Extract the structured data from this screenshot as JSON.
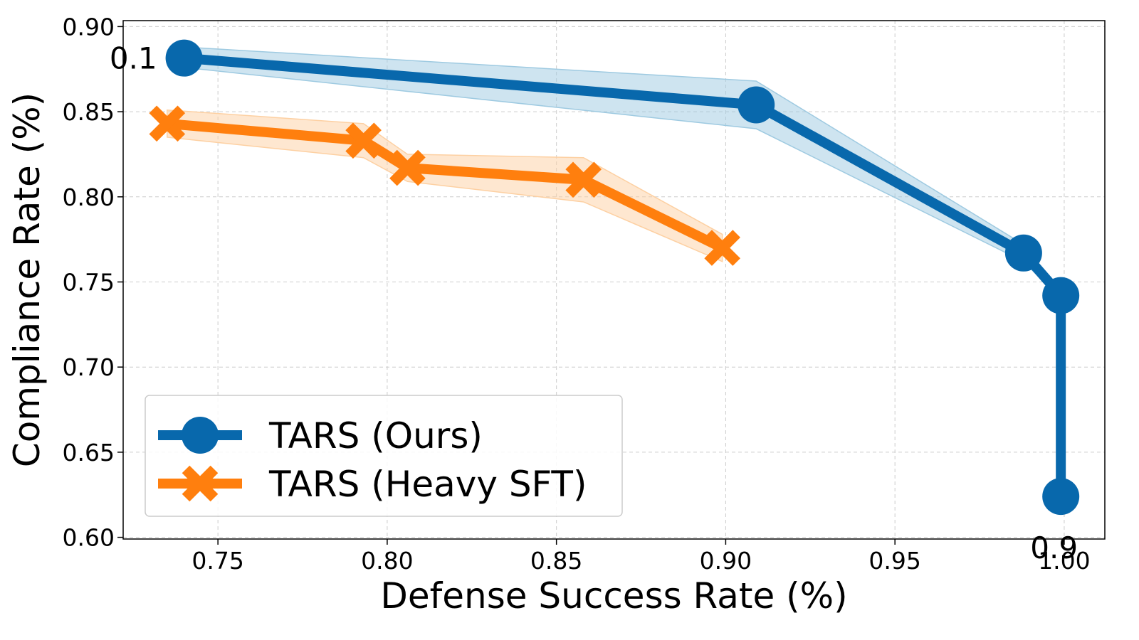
{
  "chart_data": {
    "type": "line",
    "title": "",
    "xlabel": "Defense Success Rate (%)",
    "ylabel": "Compliance Rate (%)",
    "xlim": [
      0.722,
      1.012
    ],
    "ylim": [
      0.599,
      0.9035
    ],
    "grid": true,
    "legend_position": "lower-left",
    "x_ticks": [
      0.75,
      0.8,
      0.85,
      0.9,
      0.95,
      1.0
    ],
    "x_tick_labels": [
      "0.75",
      "0.80",
      "0.85",
      "0.90",
      "0.95",
      "1.00"
    ],
    "y_ticks": [
      0.6,
      0.65,
      0.7,
      0.75,
      0.8,
      0.85,
      0.9
    ],
    "y_tick_labels": [
      "0.60",
      "0.65",
      "0.70",
      "0.75",
      "0.80",
      "0.85",
      "0.90"
    ],
    "series": [
      {
        "name": "TARS (Ours)",
        "color": "#0868ac",
        "band_color": "#9ecae1",
        "marker": "circle",
        "x": [
          0.74,
          0.909,
          0.988,
          0.999,
          0.999
        ],
        "y": [
          0.8815,
          0.854,
          0.767,
          0.742,
          0.624
        ],
        "band_lower": [
          0.876,
          0.84,
          0.762,
          0.74,
          0.624
        ],
        "band_upper": [
          0.888,
          0.868,
          0.772,
          0.744,
          0.624
        ]
      },
      {
        "name": "TARS (Heavy SFT)",
        "color": "#ff7f0e",
        "band_color": "#fdd0a2",
        "marker": "x",
        "x": [
          0.735,
          0.793,
          0.806,
          0.858,
          0.899
        ],
        "y": [
          0.843,
          0.833,
          0.817,
          0.81,
          0.77
        ],
        "band_lower": [
          0.835,
          0.823,
          0.809,
          0.797,
          0.762
        ],
        "band_upper": [
          0.851,
          0.843,
          0.825,
          0.823,
          0.778
        ]
      }
    ],
    "annotations": [
      {
        "text": "0.1",
        "x": 0.725,
        "y": 0.8815
      },
      {
        "text": "0.9",
        "x": 0.997,
        "y": 0.594
      }
    ]
  }
}
